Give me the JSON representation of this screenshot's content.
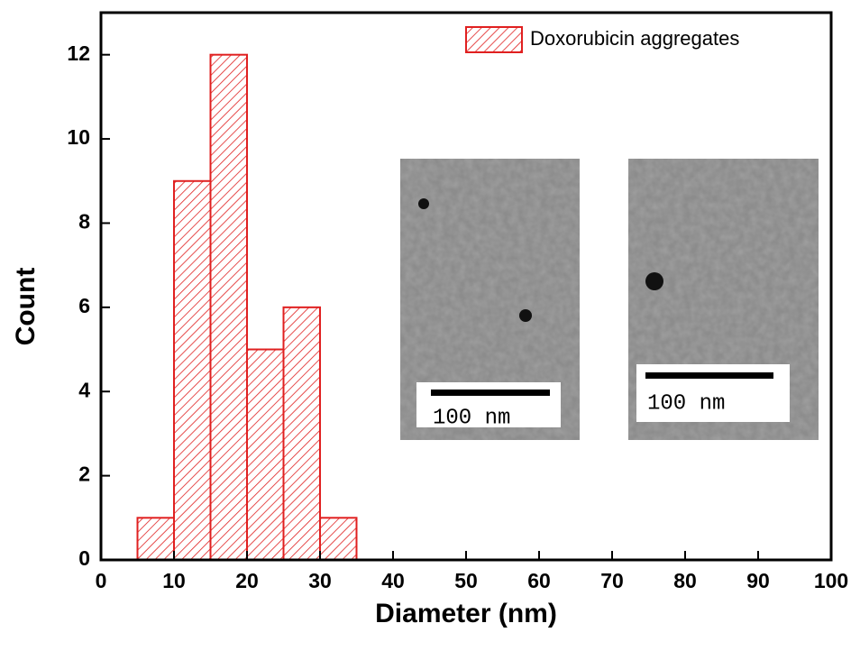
{
  "chart_data": {
    "type": "histogram",
    "x_label": "Diameter (nm)",
    "y_label": "Count",
    "bins": [
      5,
      10,
      15,
      20,
      25,
      30,
      35
    ],
    "series": [
      {
        "name": "Doxorubicin aggregates",
        "color": "#e02020",
        "values": [
          1,
          9,
          12,
          5,
          6,
          1
        ]
      }
    ],
    "xlim": [
      0,
      100
    ],
    "xticks": [
      0,
      10,
      20,
      30,
      40,
      50,
      60,
      70,
      80,
      90,
      100
    ],
    "ylim": [
      0,
      13
    ],
    "yticks": [
      0,
      2,
      4,
      6,
      8,
      10,
      12
    ],
    "legend": "upper right",
    "annotations": [
      "100 nm",
      "100 nm"
    ]
  }
}
